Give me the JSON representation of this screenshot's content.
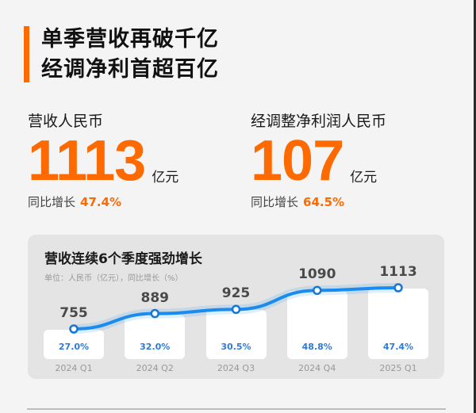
{
  "headline": {
    "line1": "单季营收再破千亿",
    "line2": "经调净利首超百亿"
  },
  "kpis": [
    {
      "label": "营收人民币",
      "value": "1113",
      "unit": "亿元",
      "growth_label": "同比增长",
      "growth_value": "47.4%"
    },
    {
      "label": "经调整净利润人民币",
      "value": "107",
      "unit": "亿元",
      "growth_label": "同比增长",
      "growth_value": "64.5%"
    }
  ],
  "card": {
    "title": "营收连续6个季度强劲增长",
    "subtitle": "单位：人民币（亿元），同比增长（%）"
  },
  "colors": {
    "accent": "#ff6a00",
    "line": "#1a8cf0",
    "percent_text": "#2e7bd6"
  },
  "chart_data": {
    "type": "line",
    "title": "营收连续6个季度强劲增长",
    "subtitle": "单位：人民币（亿元），同比增长（%）",
    "categories": [
      "2024 Q1",
      "2024 Q2",
      "2024 Q3",
      "2024 Q4",
      "2025 Q1"
    ],
    "series": [
      {
        "name": "营收（亿元）",
        "values": [
          755,
          889,
          925,
          1090,
          1113
        ]
      },
      {
        "name": "同比增长（%）",
        "values": [
          27.0,
          32.0,
          30.5,
          48.8,
          47.4
        ]
      }
    ],
    "value_labels": [
      "755",
      "889",
      "925",
      "1090",
      "1113"
    ],
    "pct_labels": [
      "27.0%",
      "32.0%",
      "30.5%",
      "48.8%",
      "47.4%"
    ],
    "xlabel": "",
    "ylabel": "",
    "grid": false,
    "legend": "none"
  }
}
